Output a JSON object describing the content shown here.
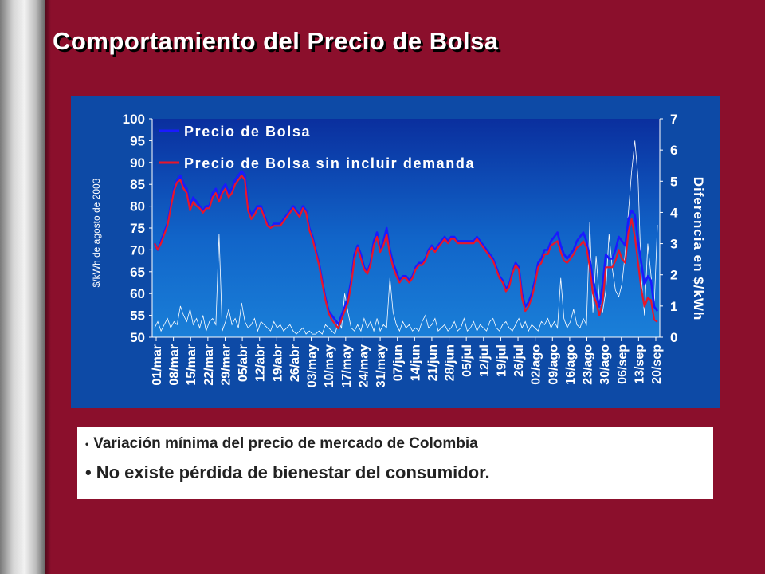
{
  "slide": {
    "title": "Comportamiento del Precio de Bolsa",
    "bullets": [
      "Variación mínima del precio de mercado de Colombia",
      "No existe pérdida de bienestar del consumidor."
    ],
    "colors": {
      "background": "#8b0f2c",
      "chart_background": "#0d4aa6",
      "series_blue": "#1a1aff",
      "series_red": "#e8162b",
      "difference_line": "#ffffff"
    }
  },
  "chart_data": {
    "type": "line",
    "ylabel": "$/kWh de agosto de 2003",
    "y2label": "Diferencia en $/kWh",
    "ylim": [
      50,
      100
    ],
    "y2lim": [
      0,
      7
    ],
    "yticks": [
      100,
      95,
      90,
      85,
      80,
      75,
      70,
      65,
      60,
      55,
      50
    ],
    "y2ticks": [
      7,
      6,
      5,
      4,
      3,
      2,
      1,
      0
    ],
    "xticks": [
      "01/mar",
      "08/mar",
      "15/mar",
      "22/mar",
      "29/mar",
      "05/abr",
      "12/abr",
      "19/abr",
      "26/abr",
      "03/may",
      "10/may",
      "17/may",
      "24/may",
      "31/may",
      "07/jun",
      "14/jun",
      "21/jun",
      "28/jun",
      "05/jul",
      "12/jul",
      "19/jul",
      "26/jul",
      "02/ago",
      "09/ago",
      "16/ago",
      "23/ago",
      "30/ago",
      "06/sep",
      "13/sep",
      "20/sep"
    ],
    "legend_position": "top-left",
    "series": [
      {
        "name": "Precio de Bolsa",
        "axis": "left",
        "values": [
          71.5,
          70,
          72,
          74,
          76,
          80,
          84,
          86,
          87,
          85,
          84,
          80,
          82,
          81,
          80,
          79,
          80,
          80,
          83,
          84,
          82,
          84,
          85,
          83,
          84,
          86,
          87,
          88,
          87,
          80,
          78,
          79,
          80,
          80,
          78,
          76,
          75,
          76,
          76,
          76,
          77,
          78,
          79,
          80,
          79,
          78,
          80,
          79,
          75,
          73,
          70,
          67,
          63,
          59,
          56,
          55,
          54,
          53,
          55,
          57,
          59,
          63,
          69,
          71,
          69,
          66,
          65,
          67,
          72,
          74,
          70,
          72,
          75,
          70,
          67,
          65,
          63,
          64,
          64,
          63,
          64,
          66,
          67,
          67,
          68,
          70,
          71,
          70,
          71,
          72,
          73,
          72,
          73,
          73,
          72,
          72,
          72,
          72,
          72,
          72,
          73,
          72,
          71,
          70,
          69,
          68,
          66,
          64,
          63,
          61,
          62,
          65,
          67,
          66,
          60,
          57,
          58,
          60,
          63,
          67,
          68,
          70,
          70,
          72,
          73,
          74,
          71,
          69,
          68,
          69,
          70,
          72,
          73,
          74,
          72,
          68,
          63,
          60,
          57,
          62,
          69,
          68,
          68,
          70,
          73,
          72,
          71,
          77,
          79,
          78,
          72,
          67,
          62,
          64,
          63,
          57,
          56
        ]
      },
      {
        "name": "Precio de Bolsa sin incluir demanda",
        "axis": "left",
        "values": [
          71.5,
          70,
          71.5,
          73.5,
          75.5,
          79.5,
          83.5,
          85.5,
          86,
          84,
          83,
          79,
          81,
          80,
          79.5,
          78.5,
          79.5,
          79.5,
          82,
          83,
          81,
          83,
          84,
          82,
          83,
          85,
          86,
          87,
          86,
          79,
          77,
          78,
          79.5,
          79.5,
          77.5,
          75.5,
          75,
          75.5,
          75.5,
          75.5,
          76.5,
          77.5,
          78.5,
          79.5,
          78.5,
          77.5,
          79.5,
          78.5,
          74.5,
          72.5,
          69.5,
          66.5,
          62.5,
          58.5,
          55.5,
          54,
          53,
          52,
          54,
          56,
          58,
          62,
          68,
          70.5,
          68,
          65.5,
          64.5,
          66.5,
          71,
          73,
          69.5,
          71,
          73.5,
          69,
          66,
          64,
          62.5,
          63.5,
          63.5,
          62.5,
          63.5,
          65.5,
          66.5,
          66.5,
          67.5,
          69.5,
          70.5,
          69.5,
          70.5,
          71.5,
          72.5,
          71.5,
          72.5,
          72.5,
          71.5,
          71.5,
          71.5,
          71.5,
          71.5,
          71.5,
          72.5,
          71.5,
          70.5,
          69.5,
          68.5,
          67.5,
          65.5,
          63.5,
          62.5,
          60.5,
          61.5,
          64.5,
          66.5,
          65.5,
          59,
          56,
          57,
          59,
          62,
          66,
          67,
          69,
          69,
          71,
          71.5,
          72,
          69.5,
          67.5,
          67,
          68,
          69,
          70.5,
          71,
          72,
          70.5,
          66,
          60,
          58,
          55,
          58,
          66,
          66,
          66,
          67.5,
          70,
          68,
          67,
          74,
          77,
          73,
          67,
          61,
          57,
          59,
          58.5,
          54,
          53.5
        ]
      },
      {
        "name": "Diferencia",
        "axis": "right",
        "values": [
          0.3,
          0.5,
          0.2,
          0.4,
          0.6,
          0.3,
          0.5,
          0.4,
          1.0,
          0.7,
          0.5,
          0.9,
          0.4,
          0.6,
          0.3,
          0.7,
          0.2,
          0.5,
          0.6,
          0.4,
          3.3,
          0.2,
          0.5,
          0.9,
          0.4,
          0.6,
          0.3,
          1.1,
          0.5,
          0.3,
          0.4,
          0.6,
          0.2,
          0.5,
          0.4,
          0.3,
          0.2,
          0.5,
          0.3,
          0.4,
          0.2,
          0.3,
          0.4,
          0.2,
          0.1,
          0.2,
          0.3,
          0.1,
          0.2,
          0.1,
          0.1,
          0.2,
          0.1,
          0.4,
          0.3,
          0.2,
          0.1,
          0.5,
          0.3,
          1.4,
          0.8,
          0.3,
          0.2,
          0.4,
          0.2,
          0.6,
          0.3,
          0.5,
          0.2,
          0.6,
          0.2,
          0.4,
          0.3,
          1.9,
          0.8,
          0.4,
          0.2,
          0.5,
          0.3,
          0.4,
          0.2,
          0.3,
          0.2,
          0.5,
          0.7,
          0.3,
          0.4,
          0.6,
          0.2,
          0.3,
          0.4,
          0.2,
          0.3,
          0.5,
          0.2,
          0.3,
          0.6,
          0.2,
          0.3,
          0.5,
          0.2,
          0.4,
          0.3,
          0.2,
          0.5,
          0.6,
          0.3,
          0.2,
          0.4,
          0.5,
          0.3,
          0.2,
          0.4,
          0.6,
          0.3,
          0.5,
          0.2,
          0.4,
          0.3,
          0.2,
          0.5,
          0.4,
          0.6,
          0.3,
          0.5,
          0.3,
          1.9,
          0.6,
          0.3,
          0.5,
          0.9,
          0.4,
          0.3,
          0.6,
          0.4,
          3.7,
          0.8,
          2.6,
          1.2,
          0.8,
          1.5,
          3.3,
          2.2,
          1.5,
          1.3,
          1.7,
          2.7,
          4.0,
          5.3,
          6.3,
          5.1,
          1.9,
          0.7,
          3.0,
          2.0,
          1.0,
          3.6
        ]
      }
    ]
  }
}
